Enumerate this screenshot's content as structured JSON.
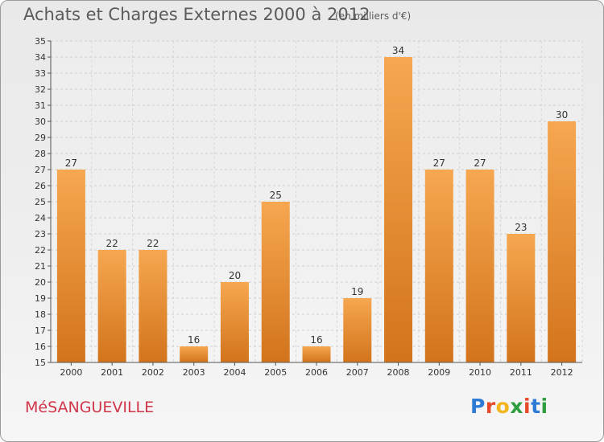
{
  "title": "Achats et Charges Externes 2000 à 2012",
  "subtitle": "(en milliers d'€)",
  "commune": "MéSANGUEVILLE",
  "logo_text": "Proxiti",
  "logo_colors": [
    "#2e7bd6",
    "#e8492b",
    "#f2b61c",
    "#2e9e3f",
    "#e8492b",
    "#2e7bd6",
    "#2e9e3f"
  ],
  "colors": {
    "bar_light": "#f6a750",
    "bar_dark": "#d2741c",
    "title": "#5b5b5b",
    "commune": "#d0364a"
  },
  "chart_data": {
    "type": "bar",
    "title": "Achats et Charges Externes 2000 à 2012",
    "subtitle": "(en milliers d'€)",
    "categories": [
      "2000",
      "2001",
      "2002",
      "2003",
      "2004",
      "2005",
      "2006",
      "2007",
      "2008",
      "2009",
      "2010",
      "2011",
      "2012"
    ],
    "values": [
      27,
      22,
      22,
      16,
      20,
      25,
      16,
      19,
      34,
      27,
      27,
      23,
      30
    ],
    "ylim": [
      15,
      35
    ],
    "yticks": [
      15,
      16,
      17,
      18,
      19,
      20,
      21,
      22,
      23,
      24,
      25,
      26,
      27,
      28,
      29,
      30,
      31,
      32,
      33,
      34,
      35
    ],
    "grid": true,
    "data_labels": true
  }
}
